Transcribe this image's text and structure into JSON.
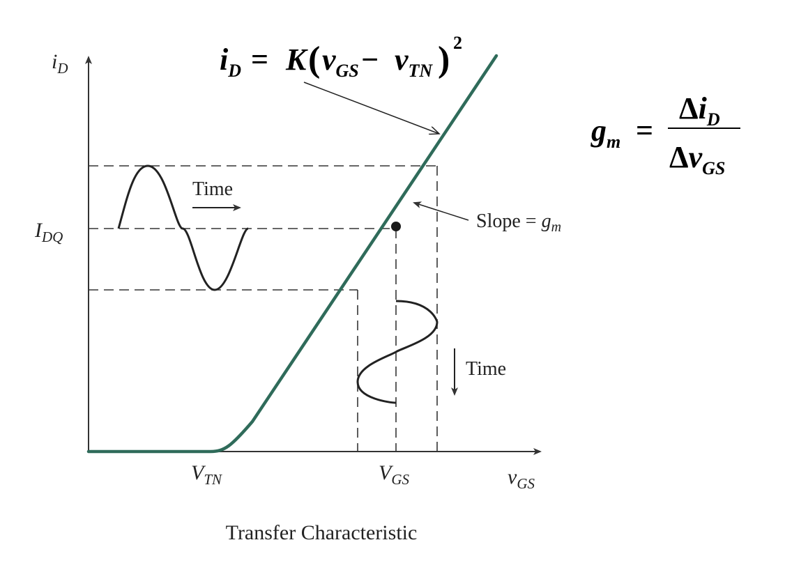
{
  "diagram": {
    "caption": "Transfer Characteristic",
    "axes": {
      "y_label_main": "i",
      "y_label_sub": "D",
      "x_label_main": "v",
      "x_label_sub": "GS"
    },
    "ticks": {
      "vtn_main": "V",
      "vtn_sub": "TN",
      "vgs_main": "V",
      "vgs_sub": "GS",
      "idq_main": "I",
      "idq_sub": "DQ"
    },
    "annotations": {
      "time_horizontal": "Time",
      "time_vertical": "Time",
      "slope_text": "Slope = ",
      "slope_g": "g",
      "slope_sub": "m"
    },
    "equation_main": {
      "lhs": "i",
      "lhs_sub": "D",
      "eq": " = ",
      "K": "K",
      "paren_open": "(",
      "v1": "v",
      "v1_sub": "GS",
      "minus": " − ",
      "v2": "v",
      "v2_sub": "TN",
      "paren_close": ")",
      "exp": "2"
    },
    "equation_gm": {
      "lhs": "g",
      "lhs_sub": "m",
      "eq": "=",
      "num_delta": "Δ",
      "num_var": "i",
      "num_sub": "D",
      "den_delta": "Δ",
      "den_var": "v",
      "den_sub": "GS"
    },
    "colors": {
      "curve": "#2f6b5a",
      "lines": "#333333",
      "text": "#222222"
    }
  }
}
